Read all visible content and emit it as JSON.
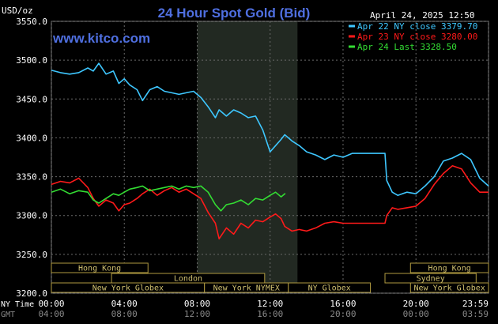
{
  "header": {
    "title": "24 Hour Spot Gold (Bid)",
    "timestamp": "April 24, 2025 12:50",
    "brand": "www.kitco.com",
    "unit_label": "USD/oz"
  },
  "axis_labels": {
    "ny_time": "NY Time",
    "gmt": "GMT"
  },
  "legend": [
    {
      "text": "Apr 22 NY close 3379.70",
      "color": "#3ec7ff"
    },
    {
      "text": "Apr 23 NY close 3280.00",
      "color": "#ff1a1a"
    },
    {
      "text": "Apr 24 Last 3328.50",
      "color": "#33dd33"
    }
  ],
  "sessions": {
    "row1": [
      {
        "label": "Hong Kong",
        "start": 0.0,
        "end": 5.3
      },
      {
        "label": "Hong Kong",
        "start": 19.7,
        "end": 23.98
      }
    ],
    "row2": [
      {
        "label": "London",
        "start": 3.3,
        "end": 11.7
      },
      {
        "label": "Sydney",
        "start": 18.3,
        "end": 23.3
      }
    ],
    "row3": [
      {
        "label": "New York Globex",
        "start": 0.0,
        "end": 8.4
      },
      {
        "label": "New York NYMEX",
        "start": 8.4,
        "end": 13.0
      },
      {
        "label": "NY Globex",
        "start": 13.0,
        "end": 17.5
      },
      {
        "label": "New York Globex",
        "start": 19.7,
        "end": 23.98
      }
    ]
  },
  "chart_data": {
    "type": "line",
    "title": "24 Hour Spot Gold (Bid)",
    "ylabel": "USD/oz",
    "ylim": [
      3200,
      3550
    ],
    "xlim": [
      0,
      23.98
    ],
    "y_ticks": [
      "3550.0",
      "3500.0",
      "3450.0",
      "3400.0",
      "3350.0",
      "3300.0",
      "3250.0",
      "3200.0"
    ],
    "x_ticks_ny": [
      "00:00",
      "04:00",
      "08:00",
      "12:00",
      "16:00",
      "20:00",
      "23:59"
    ],
    "x_ticks_gmt": [
      "04:00",
      "08:00",
      "12:00",
      "16:00",
      "20:00",
      "00:00",
      "03:59"
    ],
    "highlight_range": [
      8.0,
      13.5
    ],
    "series": [
      {
        "name": "Apr 22 NY close 3379.70",
        "color": "#3ec7ff",
        "x": [
          0,
          0.5,
          1.0,
          1.5,
          2.0,
          2.3,
          2.6,
          3.0,
          3.4,
          3.7,
          4.0,
          4.3,
          4.7,
          5.0,
          5.4,
          5.8,
          6.2,
          6.6,
          7.0,
          7.4,
          7.8,
          8.2,
          8.6,
          9.0,
          9.2,
          9.6,
          10.0,
          10.4,
          10.8,
          11.2,
          11.6,
          12.0,
          12.3,
          12.6,
          12.8,
          13.2,
          13.6,
          14.0,
          14.5,
          15.0,
          15.5,
          16.0,
          16.5,
          17.0,
          17.5,
          18.0,
          18.3,
          18.4,
          18.7,
          19.0,
          19.5,
          20.0,
          20.5,
          21.0,
          21.5,
          22.0,
          22.5,
          23.0,
          23.5,
          23.98
        ],
        "y": [
          3487,
          3484,
          3482,
          3484,
          3490,
          3486,
          3496,
          3482,
          3486,
          3470,
          3476,
          3468,
          3462,
          3448,
          3462,
          3466,
          3460,
          3458,
          3456,
          3458,
          3460,
          3452,
          3440,
          3426,
          3436,
          3428,
          3436,
          3432,
          3426,
          3428,
          3410,
          3382,
          3390,
          3398,
          3404,
          3396,
          3390,
          3382,
          3378,
          3372,
          3378,
          3375,
          3380,
          3380,
          3380,
          3380,
          3380,
          3345,
          3330,
          3326,
          3330,
          3328,
          3338,
          3350,
          3370,
          3374,
          3380,
          3372,
          3348,
          3338
        ]
      },
      {
        "name": "Apr 23 NY close 3280.00",
        "color": "#ff1a1a",
        "x": [
          0,
          0.5,
          1.0,
          1.5,
          2.0,
          2.3,
          2.6,
          3.0,
          3.4,
          3.7,
          4.0,
          4.3,
          4.7,
          5.0,
          5.4,
          5.8,
          6.2,
          6.6,
          7.0,
          7.4,
          7.8,
          8.2,
          8.6,
          9.0,
          9.2,
          9.6,
          10.0,
          10.4,
          10.8,
          11.2,
          11.6,
          12.0,
          12.3,
          12.6,
          12.8,
          13.2,
          13.6,
          14.0,
          14.5,
          15.0,
          15.5,
          16.0,
          16.5,
          17.0,
          17.5,
          18.0,
          18.3,
          18.4,
          18.7,
          19.0,
          19.5,
          20.0,
          20.5,
          21.0,
          21.5,
          22.0,
          22.5,
          23.0,
          23.5,
          23.98
        ],
        "y": [
          3340,
          3344,
          3342,
          3348,
          3336,
          3322,
          3312,
          3320,
          3316,
          3306,
          3314,
          3316,
          3322,
          3328,
          3334,
          3326,
          3332,
          3336,
          3330,
          3334,
          3328,
          3322,
          3304,
          3290,
          3270,
          3284,
          3276,
          3290,
          3284,
          3294,
          3292,
          3298,
          3302,
          3296,
          3286,
          3280,
          3282,
          3280,
          3284,
          3290,
          3292,
          3290,
          3290,
          3290,
          3290,
          3290,
          3290,
          3300,
          3310,
          3308,
          3310,
          3312,
          3322,
          3340,
          3354,
          3364,
          3360,
          3342,
          3330,
          3330
        ]
      },
      {
        "name": "Apr 24 Last 3328.50",
        "color": "#33dd33",
        "x": [
          0,
          0.5,
          1.0,
          1.5,
          2.0,
          2.3,
          2.6,
          3.0,
          3.4,
          3.7,
          4.0,
          4.3,
          4.7,
          5.0,
          5.4,
          5.8,
          6.2,
          6.6,
          7.0,
          7.4,
          7.8,
          8.2,
          8.6,
          9.0,
          9.3,
          9.6,
          10.0,
          10.4,
          10.8,
          11.2,
          11.6,
          12.0,
          12.3,
          12.6,
          12.83
        ],
        "y": [
          3330,
          3334,
          3328,
          3332,
          3330,
          3320,
          3316,
          3322,
          3328,
          3326,
          3330,
          3334,
          3336,
          3338,
          3332,
          3334,
          3336,
          3338,
          3334,
          3338,
          3336,
          3338,
          3330,
          3314,
          3306,
          3314,
          3316,
          3320,
          3314,
          3322,
          3320,
          3326,
          3330,
          3324,
          3328.5
        ]
      }
    ]
  }
}
